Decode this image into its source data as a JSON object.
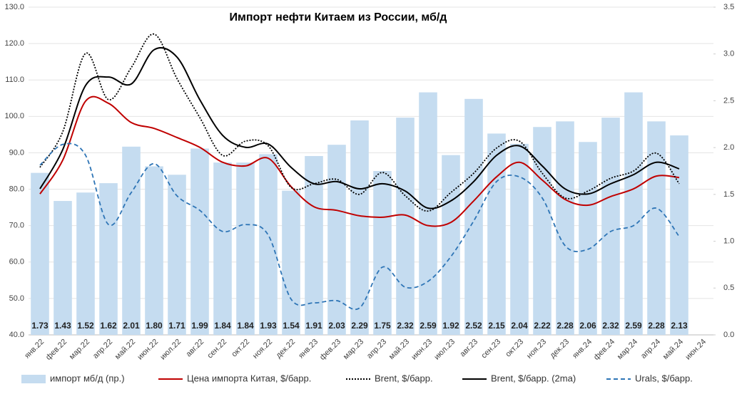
{
  "chart_data": {
    "type": "bar-line",
    "title": "Импорт нефти Китаем из России, мб/д",
    "categories": [
      "янв.22",
      "фев.22",
      "мар.22",
      "апр.22",
      "май.22",
      "июн.22",
      "июл.22",
      "авг.22",
      "сен.22",
      "окт.22",
      "ноя.22",
      "дек.22",
      "янв.23",
      "фев.23",
      "мар.23",
      "апр.23",
      "май.23",
      "июн.23",
      "июл.23",
      "авг.23",
      "сен.23",
      "окт.23",
      "ноя.23",
      "дек.23",
      "янв.24",
      "фев.24",
      "мар.24",
      "апр.24",
      "май.24",
      "июн.24"
    ],
    "series": [
      {
        "name": "импорт мб/д (пр.)",
        "type": "bar",
        "axis": "y2",
        "color": "#c5dcf0",
        "values": [
          1.73,
          1.43,
          1.52,
          1.62,
          2.01,
          1.8,
          1.71,
          1.99,
          1.84,
          1.84,
          1.93,
          1.54,
          1.91,
          2.03,
          2.29,
          1.75,
          2.32,
          2.59,
          1.92,
          2.52,
          2.15,
          2.04,
          2.22,
          2.28,
          2.06,
          2.32,
          2.59,
          2.28,
          2.13,
          null
        ],
        "value_labels": [
          "1.73",
          "1.43",
          "1.52",
          "1.62",
          "2.01",
          "1.80",
          "1.71",
          "1.99",
          "1.84",
          "1.84",
          "1.93",
          "1.54",
          "1.91",
          "2.03",
          "2.29",
          "1.75",
          "2.32",
          "2.59",
          "1.92",
          "2.52",
          "2.15",
          "2.04",
          "2.22",
          "2.28",
          "2.06",
          "2.32",
          "2.59",
          "2.28",
          "2.13",
          null
        ]
      },
      {
        "name": "Цена импорта Китая, $/барр.",
        "type": "line",
        "axis": "y",
        "color": "#c00000",
        "dash": "solid",
        "values": [
          78.7,
          88,
          104.2,
          103.6,
          98.3,
          96.7,
          94.2,
          91.5,
          87.4,
          86.4,
          88.5,
          80.7,
          75.2,
          74.2,
          72.7,
          72.3,
          72.9,
          70,
          70.9,
          76.8,
          83.4,
          87.4,
          82.5,
          77.2,
          75.6,
          78,
          80.1,
          83.6,
          83.2,
          null
        ]
      },
      {
        "name": "Brent, $/барр.",
        "type": "line",
        "axis": "y",
        "color": "#000000",
        "dash": "dotted",
        "values": [
          86,
          95.8,
          117.3,
          104.6,
          113.4,
          122.6,
          110.4,
          99.7,
          89.3,
          93.2,
          91.9,
          80.5,
          81.5,
          82.7,
          78.6,
          84.6,
          78.2,
          74,
          79.1,
          84.4,
          91.3,
          93.2,
          84.4,
          77.6,
          79.5,
          83,
          85,
          89.9,
          81.5,
          null
        ]
      },
      {
        "name": "Brent, $/барр. (2ma)",
        "type": "line",
        "axis": "y",
        "color": "#000000",
        "dash": "solid",
        "values": [
          80.1,
          90.9,
          108.5,
          110.8,
          108.9,
          118.3,
          116.3,
          104.6,
          94.8,
          91.5,
          92.4,
          86,
          81.5,
          82.1,
          80.1,
          81.5,
          79.5,
          74.8,
          76.8,
          82.1,
          89.3,
          91.9,
          86.4,
          80.1,
          78.7,
          81.5,
          84,
          87.4,
          85.6,
          null
        ]
      },
      {
        "name": "Urals, $/барр.",
        "type": "line",
        "axis": "y",
        "color": "#2e75b6",
        "dash": "dashed",
        "values": [
          86.6,
          92.3,
          89.3,
          70.3,
          79.1,
          87,
          78.2,
          74.2,
          68.4,
          70.3,
          67.4,
          49.8,
          48.8,
          49.4,
          47.4,
          58.6,
          53.1,
          54.7,
          61.5,
          71.3,
          82.1,
          83.4,
          77.6,
          64.5,
          63.5,
          68.4,
          70,
          74.8,
          67,
          null
        ]
      }
    ],
    "ylim": [
      40,
      130
    ],
    "yticks": [
      {
        "value": 40,
        "label": "40.0"
      },
      {
        "value": 50,
        "label": "50.0"
      },
      {
        "value": 60,
        "label": "60.0"
      },
      {
        "value": 70,
        "label": "70.0"
      },
      {
        "value": 80,
        "label": "80.0"
      },
      {
        "value": 90,
        "label": "90.0"
      },
      {
        "value": 100,
        "label": "100.0"
      },
      {
        "value": 110,
        "label": "110.0"
      },
      {
        "value": 120,
        "label": "120.0"
      },
      {
        "value": 130,
        "label": "130.0"
      }
    ],
    "y2lim": [
      0,
      3.5
    ],
    "y2ticks": [
      {
        "value": 0,
        "label": "0.0"
      },
      0.5,
      {
        "value": 1,
        "label": "1.0"
      },
      1.5,
      {
        "value": 2,
        "label": "2.0"
      },
      2.5,
      {
        "value": 3,
        "label": "3.0"
      },
      3.5
    ],
    "grid": true,
    "legend": "bottom"
  }
}
